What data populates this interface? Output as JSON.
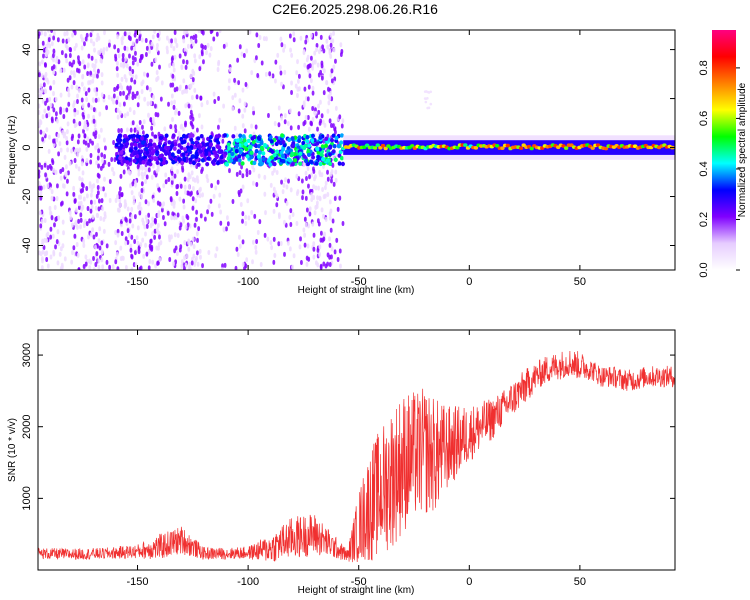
{
  "title": "C2E6.2025.298.06.26.R16",
  "chart_data": [
    {
      "type": "heatmap",
      "xlabel": "Height of straight line (km)",
      "ylabel": "Frequency (Hz)",
      "xlim": [
        -195,
        93
      ],
      "ylim": [
        -50,
        48
      ],
      "x_ticks": [
        -150,
        -100,
        -50,
        0,
        50
      ],
      "x_tick_labels": [
        "-150",
        "-100",
        "-50",
        "0",
        "50"
      ],
      "y_ticks": [
        -40,
        -20,
        0,
        20,
        40
      ],
      "y_tick_labels": [
        "-40",
        "-20",
        "0",
        "20",
        "40"
      ],
      "colorbar": {
        "label": "Normalized spectral amplitude",
        "range": [
          0,
          0.95
        ],
        "ticks": [
          0.0,
          0.2,
          0.4,
          0.6,
          0.8
        ],
        "tick_labels": [
          "0.0",
          "0.2",
          "0.4",
          "0.6",
          "0.8"
        ],
        "colormap": [
          "#ffffff",
          "#e6ccff",
          "#8000ff",
          "#0000ff",
          "#00ffff",
          "#00ff00",
          "#ffff00",
          "#ff8000",
          "#ff0000",
          "#ff0080"
        ]
      },
      "features": [
        {
          "x_range": [
            -195,
            -57
          ],
          "freq_range": [
            -50,
            48
          ],
          "level": 0.1,
          "kind": "broadband noise"
        },
        {
          "x_range": [
            -110,
            -57
          ],
          "freq_range": [
            -7,
            5
          ],
          "level": 0.3,
          "kind": "carrier band"
        },
        {
          "x_range": [
            -57,
            93
          ],
          "freq_range": [
            -3,
            3
          ],
          "level": 0.85,
          "kind": "carrier line"
        },
        {
          "x_range": [
            -20,
            -17
          ],
          "freq_range": [
            16,
            25
          ],
          "level": 0.05,
          "kind": "faint streak"
        }
      ]
    },
    {
      "type": "line",
      "xlabel": "Height of straight line (km)",
      "ylabel": "SNR (10 * v/v)",
      "xlim": [
        -195,
        93
      ],
      "ylim": [
        0,
        3350
      ],
      "x_ticks": [
        -150,
        -100,
        -50,
        0,
        50
      ],
      "x_tick_labels": [
        "-150",
        "-100",
        "-50",
        "0",
        "50"
      ],
      "y_ticks": [
        1000,
        2000,
        3000
      ],
      "y_tick_labels": [
        "1000",
        "2000",
        "3000"
      ],
      "color": "#f03030",
      "x": [
        -195,
        -180,
        -165,
        -150,
        -140,
        -130,
        -120,
        -110,
        -100,
        -90,
        -80,
        -70,
        -60,
        -55,
        -50,
        -45,
        -40,
        -35,
        -30,
        -25,
        -20,
        -15,
        -10,
        -5,
        0,
        5,
        10,
        15,
        20,
        25,
        30,
        35,
        40,
        45,
        50,
        55,
        60,
        65,
        70,
        75,
        80,
        85,
        93
      ],
      "y": [
        230,
        220,
        230,
        260,
        320,
        420,
        230,
        230,
        240,
        300,
        450,
        500,
        300,
        200,
        600,
        900,
        1100,
        1300,
        1500,
        1600,
        1650,
        1600,
        1700,
        1800,
        1900,
        2000,
        2100,
        2250,
        2400,
        2550,
        2700,
        2800,
        2850,
        2900,
        2850,
        2800,
        2700,
        2700,
        2650,
        2650,
        2700,
        2700,
        2700
      ],
      "spread": [
        80,
        80,
        80,
        100,
        180,
        200,
        90,
        80,
        90,
        200,
        300,
        300,
        150,
        90,
        500,
        800,
        900,
        1000,
        1000,
        900,
        900,
        800,
        600,
        500,
        400,
        350,
        300,
        250,
        250,
        250,
        200,
        200,
        200,
        200,
        200,
        150,
        150,
        150,
        150,
        150,
        150,
        150,
        150
      ]
    }
  ]
}
